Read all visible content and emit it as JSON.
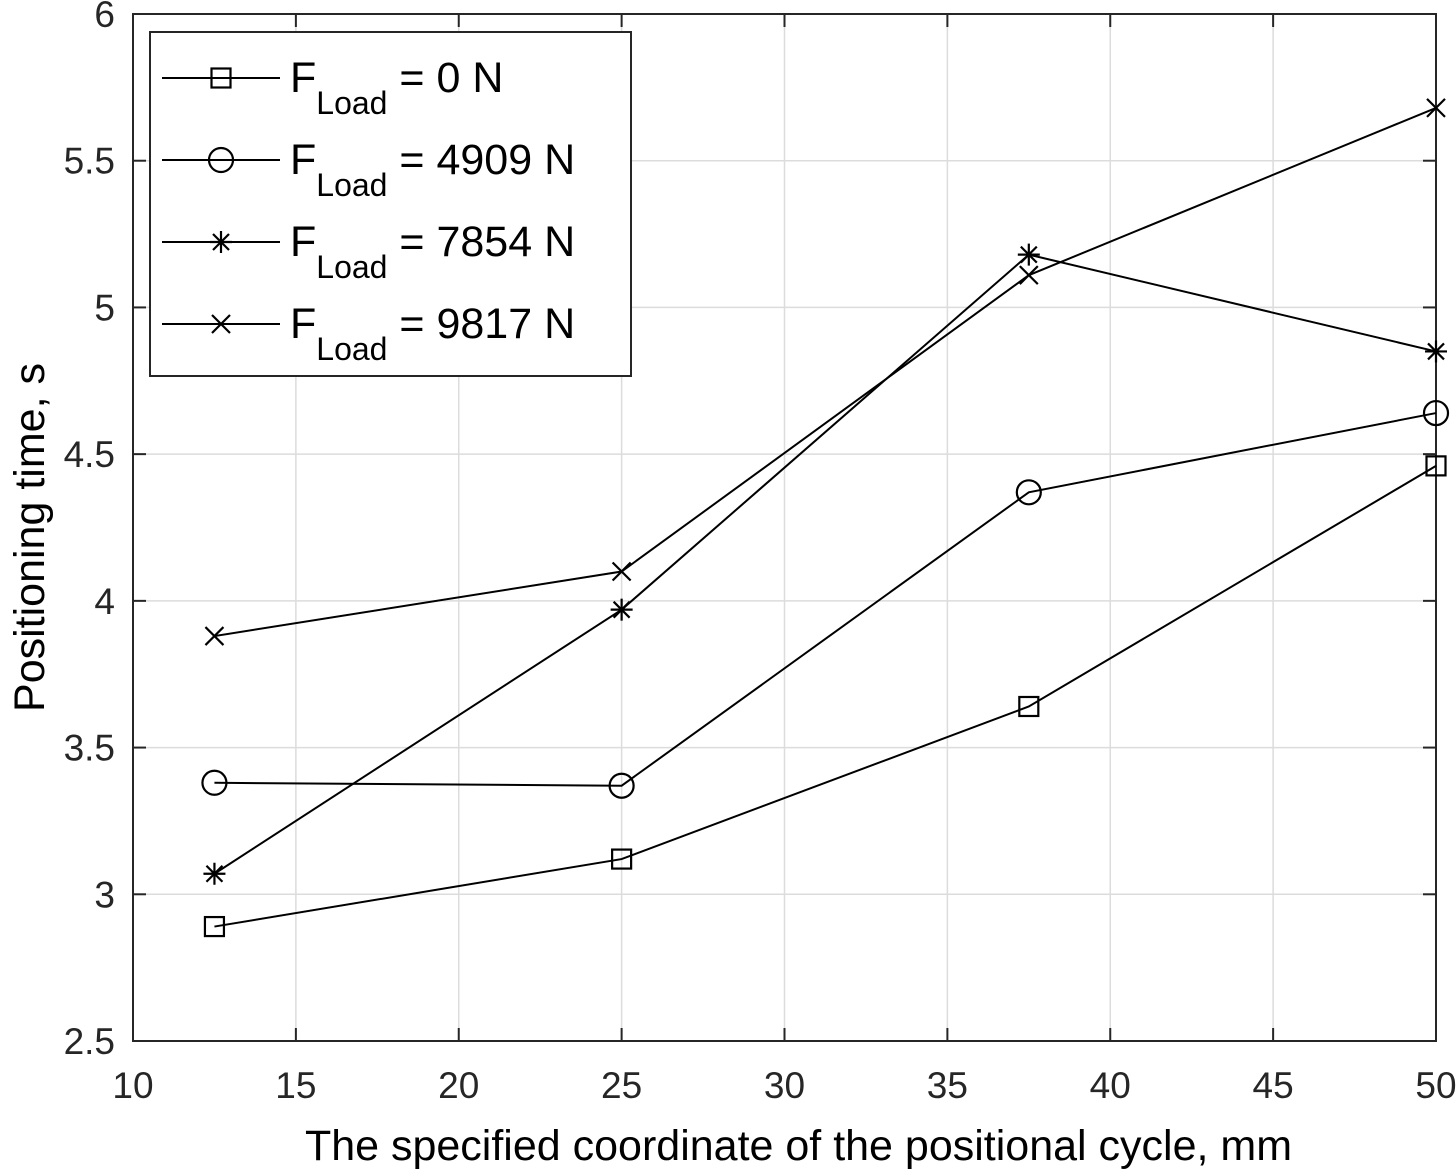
{
  "chart_data": {
    "type": "line",
    "xlabel": "The specified coordinate of the positional cycle, mm",
    "ylabel": "Positioning time, s",
    "xlim": [
      10,
      50
    ],
    "ylim": [
      2.5,
      6
    ],
    "xticks": [
      10,
      15,
      20,
      25,
      30,
      35,
      40,
      45,
      50
    ],
    "yticks": [
      2.5,
      3,
      3.5,
      4,
      4.5,
      5,
      5.5,
      6
    ],
    "xtick_labels": [
      "10",
      "15",
      "20",
      "25",
      "30",
      "35",
      "40",
      "45",
      "50"
    ],
    "ytick_labels": [
      "2.5",
      "3",
      "3.5",
      "4",
      "4.5",
      "5",
      "5.5",
      "6"
    ],
    "grid": true,
    "legend_position": "top-left",
    "line_color": "#000000",
    "grid_color": "#dcdcdc",
    "x": [
      12.5,
      25,
      37.5,
      50
    ],
    "series": [
      {
        "name_main": "F",
        "name_sub": "Load",
        "name_rest": " = 0 N",
        "marker": "square",
        "values": [
          2.89,
          3.12,
          3.64,
          4.46
        ]
      },
      {
        "name_main": "F",
        "name_sub": "Load",
        "name_rest": " = 4909 N",
        "marker": "circle",
        "values": [
          3.38,
          3.37,
          4.37,
          4.64
        ]
      },
      {
        "name_main": "F",
        "name_sub": "Load",
        "name_rest": " = 7854 N",
        "marker": "asterisk",
        "values": [
          3.07,
          3.97,
          5.18,
          4.85
        ]
      },
      {
        "name_main": "F",
        "name_sub": "Load",
        "name_rest": " = 9817 N",
        "marker": "cross",
        "values": [
          3.88,
          4.1,
          5.11,
          5.68
        ]
      }
    ]
  }
}
